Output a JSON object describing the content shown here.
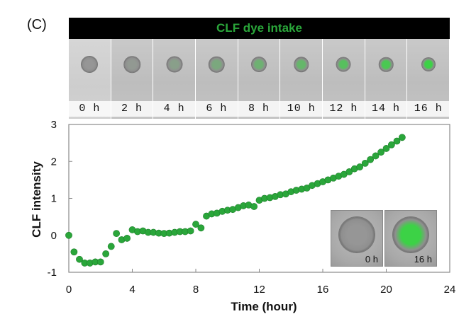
{
  "panel_label": "(C)",
  "banner_title": "CLF dye intake",
  "colors": {
    "marker": "#2aa63a",
    "banner": "#000000",
    "banner_text": "#2aa63a"
  },
  "timelapse_frames": [
    {
      "label": "0 h",
      "green": 0.0
    },
    {
      "label": "2 h",
      "green": 0.05
    },
    {
      "label": "4 h",
      "green": 0.15
    },
    {
      "label": "6 h",
      "green": 0.3
    },
    {
      "label": "8 h",
      "green": 0.45
    },
    {
      "label": "10 h",
      "green": 0.55
    },
    {
      "label": "12 h",
      "green": 0.7
    },
    {
      "label": "14 h",
      "green": 0.85
    },
    {
      "label": "16 h",
      "green": 1.0
    }
  ],
  "insets": [
    {
      "label": "0 h",
      "green": 0.0
    },
    {
      "label": "16 h",
      "green": 1.0
    }
  ],
  "chart_data": {
    "type": "scatter",
    "xlabel": "Time (hour)",
    "ylabel": "CLF intensity",
    "xlim": [
      0,
      24
    ],
    "ylim": [
      -1,
      3
    ],
    "xticks": [
      0,
      4,
      8,
      12,
      16,
      20,
      24
    ],
    "yticks": [
      -1,
      0,
      1,
      2,
      3
    ],
    "grid": false,
    "series": [
      {
        "x": [
          0,
          0.33,
          0.67,
          1,
          1.33,
          1.67,
          2,
          2.33,
          2.67,
          3,
          3.33,
          3.67,
          4,
          4.33,
          4.67,
          5,
          5.33,
          5.67,
          6,
          6.33,
          6.67,
          7,
          7.33,
          7.67,
          8,
          8.33,
          8.67,
          9,
          9.33,
          9.67,
          10,
          10.33,
          10.67,
          11,
          11.33,
          11.67,
          12,
          12.33,
          12.67,
          13,
          13.33,
          13.67,
          14,
          14.33,
          14.67,
          15,
          15.33,
          15.67,
          16,
          16.33,
          16.67,
          17,
          17.33,
          17.67,
          18,
          18.33,
          18.67,
          19,
          19.33,
          19.67,
          20,
          20.33,
          20.67,
          21
        ],
        "y": [
          0,
          -0.45,
          -0.65,
          -0.75,
          -0.75,
          -0.72,
          -0.72,
          -0.5,
          -0.3,
          0.05,
          -0.12,
          -0.08,
          0.15,
          0.1,
          0.12,
          0.08,
          0.08,
          0.06,
          0.05,
          0.06,
          0.08,
          0.1,
          0.1,
          0.12,
          0.3,
          0.2,
          0.52,
          0.58,
          0.6,
          0.65,
          0.68,
          0.7,
          0.75,
          0.8,
          0.82,
          0.78,
          0.95,
          1.0,
          1.02,
          1.05,
          1.1,
          1.12,
          1.18,
          1.22,
          1.25,
          1.28,
          1.35,
          1.4,
          1.45,
          1.5,
          1.55,
          1.6,
          1.65,
          1.72,
          1.8,
          1.85,
          1.95,
          2.05,
          2.15,
          2.25,
          2.35,
          2.45,
          2.55,
          2.65
        ]
      }
    ]
  }
}
